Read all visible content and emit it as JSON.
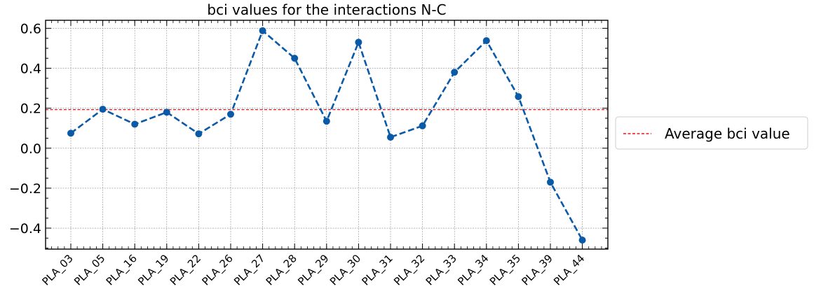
{
  "chart_data": {
    "type": "line",
    "title": "bci values for the interactions N-C",
    "xlabel": "",
    "ylabel": "",
    "categories": [
      "PLA_03",
      "PLA_05",
      "PLA_16",
      "PLA_19",
      "PLA_22",
      "PLA_26",
      "PLA_27",
      "PLA_28",
      "PLA_29",
      "PLA_30",
      "PLA_31",
      "PLA_32",
      "PLA_33",
      "PLA_34",
      "PLA_35",
      "PLA_39",
      "PLA_44"
    ],
    "series": [
      {
        "values": [
          0.075,
          0.195,
          0.12,
          0.18,
          0.072,
          0.17,
          0.588,
          0.45,
          0.135,
          0.53,
          0.055,
          0.112,
          0.38,
          0.538,
          0.258,
          -0.17,
          -0.46
        ],
        "color": "#0a5aa8",
        "style": "dashed",
        "marker": "circle"
      }
    ],
    "average_line": {
      "label": "Average bci value",
      "value": 0.193,
      "color": "#e31a1c"
    },
    "ylim": [
      -0.505,
      0.64
    ],
    "yticks": [
      "−0.4",
      "−0.2",
      "0.0",
      "0.2",
      "0.4",
      "0.6"
    ],
    "ytick_values": [
      -0.4,
      -0.2,
      0.0,
      0.2,
      0.4,
      0.6
    ],
    "grid": true,
    "legend_position": "right-outside"
  }
}
